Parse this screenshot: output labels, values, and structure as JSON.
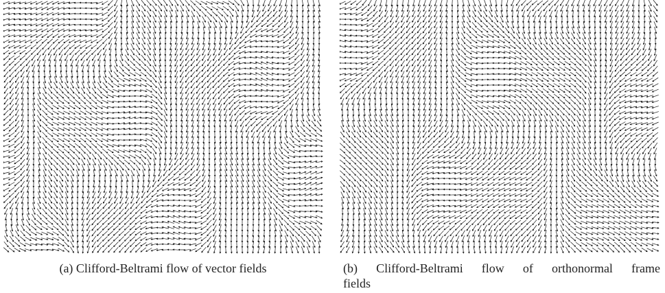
{
  "figure": {
    "panels": [
      {
        "caption_lines": [
          "(a) Clifford-Beltrami flow of vector fields"
        ]
      },
      {
        "caption_lines": [
          "(b) Clifford-Beltrami flow of orthonormal frame",
          "fields"
        ]
      }
    ]
  }
}
